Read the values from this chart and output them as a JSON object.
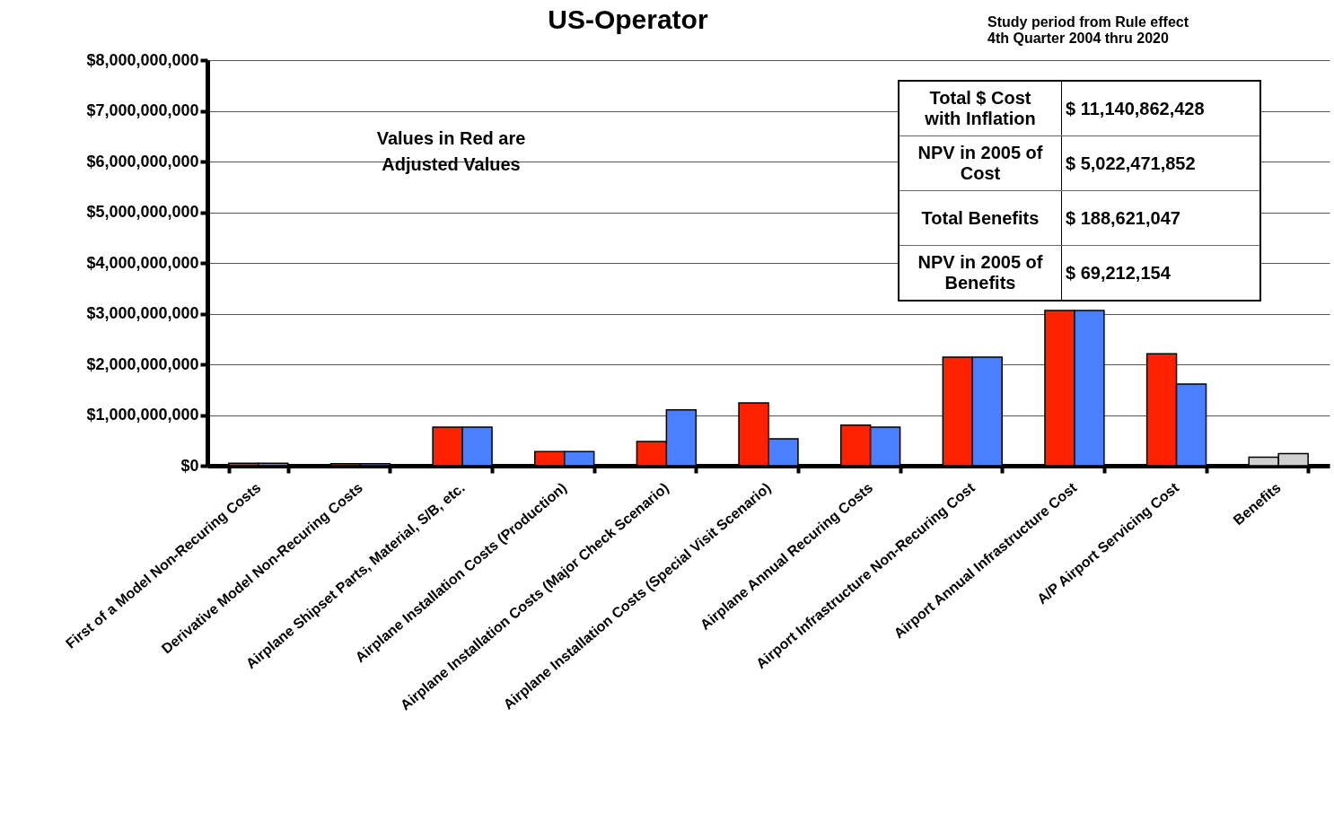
{
  "chart_data": {
    "type": "bar",
    "title": "US-Operator",
    "categories": [
      "First of a Model Non-Recuring Costs",
      "Derivative Model Non-Recuring Costs",
      "Airplane Shipset Parts, Material, S/B, etc.",
      "Airplane Installation Costs (Production)",
      "Airplane Installation Costs (Major Check Scenario)",
      "Airplane Installation Costs (Special Visit Scenario)",
      "Airplane Annual Recuring Costs",
      "Airport Infrastructure Non-Recuring Cost",
      "Airport Annual Infrastructure Cost",
      "A/P Airport Servicing Cost",
      "Benefits"
    ],
    "series": [
      {
        "colors": [
          "#ff2200",
          "#ff2200",
          "#ff2200",
          "#ff2200",
          "#ff2200",
          "#ff2200",
          "#ff2200",
          "#ff2200",
          "#ff2200",
          "#ff2200",
          "#d0d0d0"
        ],
        "values": [
          50000000,
          40000000,
          760000000,
          280000000,
          480000000,
          1240000000,
          800000000,
          2140000000,
          3060000000,
          2210000000,
          170000000
        ]
      },
      {
        "colors": [
          "#4a7fff",
          "#4a7fff",
          "#4a7fff",
          "#4a7fff",
          "#4a7fff",
          "#4a7fff",
          "#4a7fff",
          "#4a7fff",
          "#4a7fff",
          "#4a7fff",
          "#d0d0d0"
        ],
        "values": [
          50000000,
          40000000,
          760000000,
          280000000,
          1100000000,
          530000000,
          760000000,
          2140000000,
          3060000000,
          1610000000,
          240000000
        ]
      }
    ],
    "ylim": [
      0,
      8000000000
    ],
    "yticks": [
      {
        "value": 0,
        "label": "$0"
      },
      {
        "value": 1000000000,
        "label": "$1,000,000,000"
      },
      {
        "value": 2000000000,
        "label": "$2,000,000,000"
      },
      {
        "value": 3000000000,
        "label": "$3,000,000,000"
      },
      {
        "value": 4000000000,
        "label": "$4,000,000,000"
      },
      {
        "value": 5000000000,
        "label": "$5,000,000,000"
      },
      {
        "value": 6000000000,
        "label": "$6,000,000,000"
      },
      {
        "value": 7000000000,
        "label": "$7,000,000,000"
      },
      {
        "value": 8000000000,
        "label": "$8,000,000,000"
      }
    ],
    "grid": "y",
    "annotations": [
      "Study period from  Rule effect\n4th Quarter  2004  thru  2020",
      "Values in Red are\nAdjusted Values",
      "Total $ Cost\nwith Inflation",
      "$ 11,140,862,428",
      "NPV in 2005 of\nCost",
      "$ 5,022,471,852",
      "Total Benefits",
      "$ 188,621,047",
      "NPV in 2005 of\nBenefits",
      "$ 69,212,154"
    ]
  }
}
